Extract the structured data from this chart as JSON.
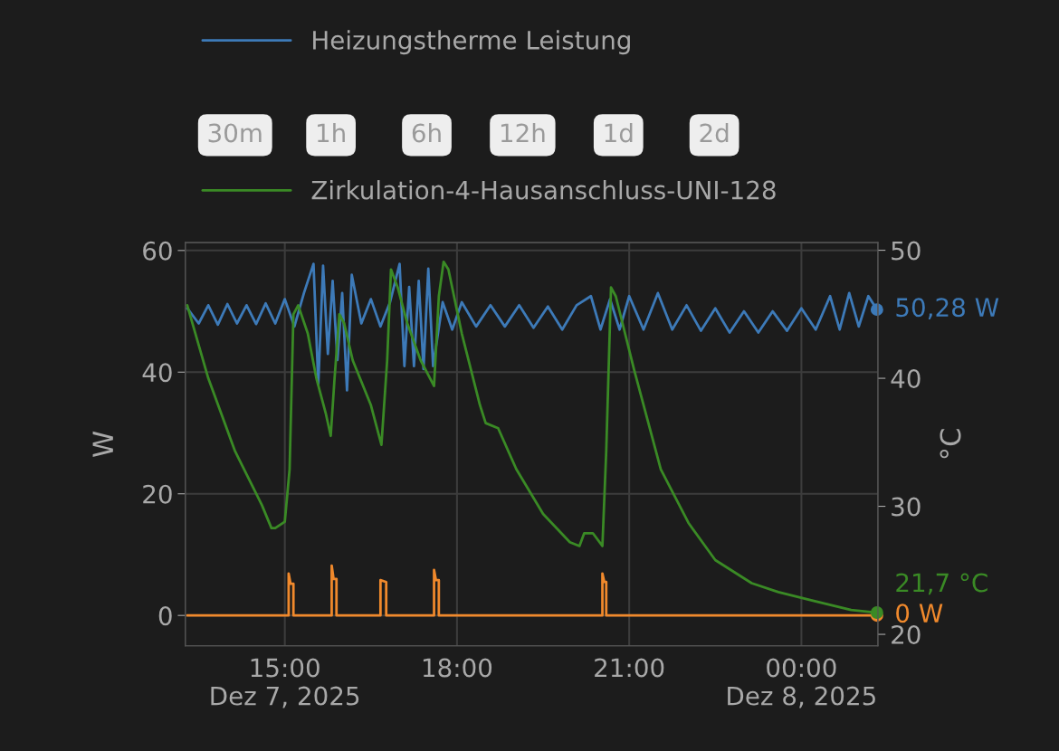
{
  "chart_data": {
    "type": "line",
    "ylabel": "W",
    "y2label": "°C",
    "annotations": [
      "30m",
      "1h",
      "6h",
      "12h",
      "1d",
      "2d"
    ],
    "legend": "top",
    "grid": true,
    "marker": "none",
    "line_style": "solid",
    "xlim": [
      "2025-12-07T13:16",
      "2025-12-08T01:20"
    ],
    "xticks": [
      {
        "value": "2025-12-07T15:00",
        "label": "15:00\nDez 7, 2025"
      },
      {
        "value": "2025-12-07T18:00",
        "label": "18:00"
      },
      {
        "value": "2025-12-07T21:00",
        "label": "21:00"
      },
      {
        "value": "2025-12-08T00:00",
        "label": "00:00\nDez 8, 2025"
      }
    ],
    "ylim": [
      -5,
      61.3
    ],
    "yticks": [
      0,
      20,
      40,
      60
    ],
    "y2lim": [
      19.1,
      50.6
    ],
    "y2ticks": [
      20,
      30,
      40,
      50
    ],
    "series": [
      {
        "name": "Heizungstherme Leistung",
        "color": "#3d7ab8",
        "x": [
          "2025-12-07T13:18",
          "2025-12-07T13:30",
          "2025-12-07T13:40",
          "2025-12-07T13:50",
          "2025-12-07T14:00",
          "2025-12-07T14:10",
          "2025-12-07T14:20",
          "2025-12-07T14:30",
          "2025-12-07T14:40",
          "2025-12-07T14:50",
          "2025-12-07T15:00",
          "2025-12-07T15:10",
          "2025-12-07T15:20",
          "2025-12-07T15:30",
          "2025-12-07T15:35",
          "2025-12-07T15:40",
          "2025-12-07T15:45",
          "2025-12-07T15:50",
          "2025-12-07T15:55",
          "2025-12-07T16:00",
          "2025-12-07T16:05",
          "2025-12-07T16:10",
          "2025-12-07T16:20",
          "2025-12-07T16:30",
          "2025-12-07T16:40",
          "2025-12-07T16:50",
          "2025-12-07T17:00",
          "2025-12-07T17:05",
          "2025-12-07T17:10",
          "2025-12-07T17:15",
          "2025-12-07T17:20",
          "2025-12-07T17:25",
          "2025-12-07T17:30",
          "2025-12-07T17:35",
          "2025-12-07T17:45",
          "2025-12-07T17:55",
          "2025-12-07T18:05",
          "2025-12-07T18:20",
          "2025-12-07T18:35",
          "2025-12-07T18:50",
          "2025-12-07T19:05",
          "2025-12-07T19:20",
          "2025-12-07T19:35",
          "2025-12-07T19:50",
          "2025-12-07T20:05",
          "2025-12-07T20:20",
          "2025-12-07T20:30",
          "2025-12-07T20:40",
          "2025-12-07T20:50",
          "2025-12-07T21:00",
          "2025-12-07T21:15",
          "2025-12-07T21:30",
          "2025-12-07T21:45",
          "2025-12-07T22:00",
          "2025-12-07T22:15",
          "2025-12-07T22:30",
          "2025-12-07T22:45",
          "2025-12-07T23:00",
          "2025-12-07T23:15",
          "2025-12-07T23:30",
          "2025-12-07T23:45",
          "2025-12-08T00:00",
          "2025-12-08T00:15",
          "2025-12-08T00:30",
          "2025-12-08T00:40",
          "2025-12-08T00:50",
          "2025-12-08T01:00",
          "2025-12-08T01:10",
          "2025-12-08T01:19"
        ],
        "values": [
          50.5,
          48,
          51,
          47.8,
          51.2,
          48,
          51,
          47.9,
          51.3,
          48,
          52,
          47.5,
          53,
          57.8,
          38,
          57.5,
          43,
          55,
          42,
          53,
          37,
          56,
          48,
          52,
          47.5,
          51.5,
          57.8,
          41,
          54,
          41,
          55,
          40.5,
          57,
          41,
          51.5,
          47,
          51.5,
          47.5,
          51,
          47.5,
          51,
          47.3,
          50.8,
          47,
          51,
          52.5,
          47,
          52,
          47,
          52.5,
          47,
          53,
          47,
          51,
          46.8,
          50.5,
          46.5,
          50,
          46.5,
          50,
          46.8,
          50.5,
          47,
          52.5,
          47,
          53,
          47.5,
          52.5,
          50.28
        ],
        "value_labels": [
          null,
          null,
          null,
          null,
          null,
          null,
          null,
          null,
          null,
          null,
          null,
          null,
          null,
          null,
          null,
          null,
          null,
          null,
          null,
          null,
          null,
          null,
          null,
          null,
          null,
          null,
          null,
          null,
          null,
          null,
          null,
          null,
          null,
          null,
          null,
          null,
          null,
          null,
          null,
          null,
          null,
          null,
          null,
          null,
          null,
          null,
          null,
          null,
          null,
          null,
          null,
          null,
          null,
          null,
          null,
          null,
          null,
          null,
          null,
          null,
          null,
          null,
          null,
          null,
          null,
          null,
          null,
          null,
          "50,28 W"
        ]
      },
      {
        "color": "#f0892c",
        "x": [
          "2025-12-07T13:18",
          "2025-12-07T15:04",
          "2025-12-07T15:04",
          "2025-12-07T15:06",
          "2025-12-07T15:09",
          "2025-12-07T15:09",
          "2025-12-07T15:49",
          "2025-12-07T15:49",
          "2025-12-07T15:51",
          "2025-12-07T15:54",
          "2025-12-07T15:54",
          "2025-12-07T16:40",
          "2025-12-07T16:40",
          "2025-12-07T16:46",
          "2025-12-07T16:46",
          "2025-12-07T17:36",
          "2025-12-07T17:36",
          "2025-12-07T17:38",
          "2025-12-07T17:41",
          "2025-12-07T17:41",
          "2025-12-07T20:32",
          "2025-12-07T20:32",
          "2025-12-07T20:34",
          "2025-12-07T20:36",
          "2025-12-07T20:36",
          "2025-12-08T01:19"
        ],
        "values": [
          0,
          0,
          6.9,
          5.2,
          5.2,
          0,
          0,
          8.2,
          6,
          6,
          0,
          0,
          5.8,
          5.5,
          0,
          0,
          7.5,
          5.8,
          5.8,
          0,
          0,
          6.9,
          5.5,
          5.5,
          0,
          0
        ],
        "value_labels": [
          null,
          null,
          null,
          null,
          null,
          null,
          null,
          null,
          null,
          null,
          null,
          null,
          null,
          null,
          null,
          null,
          null,
          null,
          null,
          null,
          null,
          null,
          null,
          null,
          null,
          "0 W"
        ]
      },
      {
        "name": "Zirkulation-4-Hausanschluss-UNI-128",
        "color": "#3a8a25",
        "axis": "y2",
        "x": [
          "2025-12-07T13:18",
          "2025-12-07T13:40",
          "2025-12-07T14:08",
          "2025-12-07T14:36",
          "2025-12-07T14:46",
          "2025-12-07T14:50",
          "2025-12-07T15:00",
          "2025-12-07T15:05",
          "2025-12-07T15:09",
          "2025-12-07T15:14",
          "2025-12-07T15:24",
          "2025-12-07T15:33",
          "2025-12-07T15:43",
          "2025-12-07T15:48",
          "2025-12-07T15:52",
          "2025-12-07T15:57",
          "2025-12-07T16:02",
          "2025-12-07T16:11",
          "2025-12-07T16:30",
          "2025-12-07T16:41",
          "2025-12-07T16:47",
          "2025-12-07T16:51",
          "2025-12-07T16:58",
          "2025-12-07T17:08",
          "2025-12-07T17:22",
          "2025-12-07T17:36",
          "2025-12-07T17:41",
          "2025-12-07T17:46",
          "2025-12-07T17:51",
          "2025-12-07T18:05",
          "2025-12-07T18:24",
          "2025-12-07T18:30",
          "2025-12-07T18:43",
          "2025-12-07T19:02",
          "2025-12-07T19:30",
          "2025-12-07T19:58",
          "2025-12-07T20:08",
          "2025-12-07T20:13",
          "2025-12-07T20:22",
          "2025-12-07T20:32",
          "2025-12-07T20:36",
          "2025-12-07T20:41",
          "2025-12-07T20:46",
          "2025-12-07T21:05",
          "2025-12-07T21:33",
          "2025-12-07T22:02",
          "2025-12-07T22:30",
          "2025-12-07T23:08",
          "2025-12-07T23:36",
          "2025-12-08T00:14",
          "2025-12-08T00:52",
          "2025-12-08T01:19"
        ],
        "values": [
          45.7,
          40.0,
          34.3,
          30.1,
          28.3,
          28.3,
          28.8,
          32.9,
          45.0,
          45.7,
          43.5,
          40.0,
          37.2,
          35.5,
          40.0,
          45.0,
          44.3,
          41.4,
          37.9,
          34.8,
          41.4,
          48.5,
          47.1,
          44.3,
          41.4,
          39.4,
          46.4,
          49.1,
          48.5,
          43.5,
          37.9,
          36.5,
          36.1,
          32.9,
          29.4,
          27.2,
          26.9,
          27.9,
          27.9,
          26.9,
          34.3,
          47.1,
          46.4,
          40.7,
          32.9,
          28.7,
          25.8,
          24.0,
          23.3,
          22.6,
          21.9,
          21.7
        ],
        "value_labels": [
          null,
          null,
          null,
          null,
          null,
          null,
          null,
          null,
          null,
          null,
          null,
          null,
          null,
          null,
          null,
          null,
          null,
          null,
          null,
          null,
          null,
          null,
          null,
          null,
          null,
          null,
          null,
          null,
          null,
          null,
          null,
          null,
          null,
          null,
          null,
          null,
          null,
          null,
          null,
          null,
          null,
          null,
          null,
          null,
          null,
          null,
          null,
          null,
          null,
          null,
          null,
          "21,7 °C"
        ]
      }
    ]
  }
}
